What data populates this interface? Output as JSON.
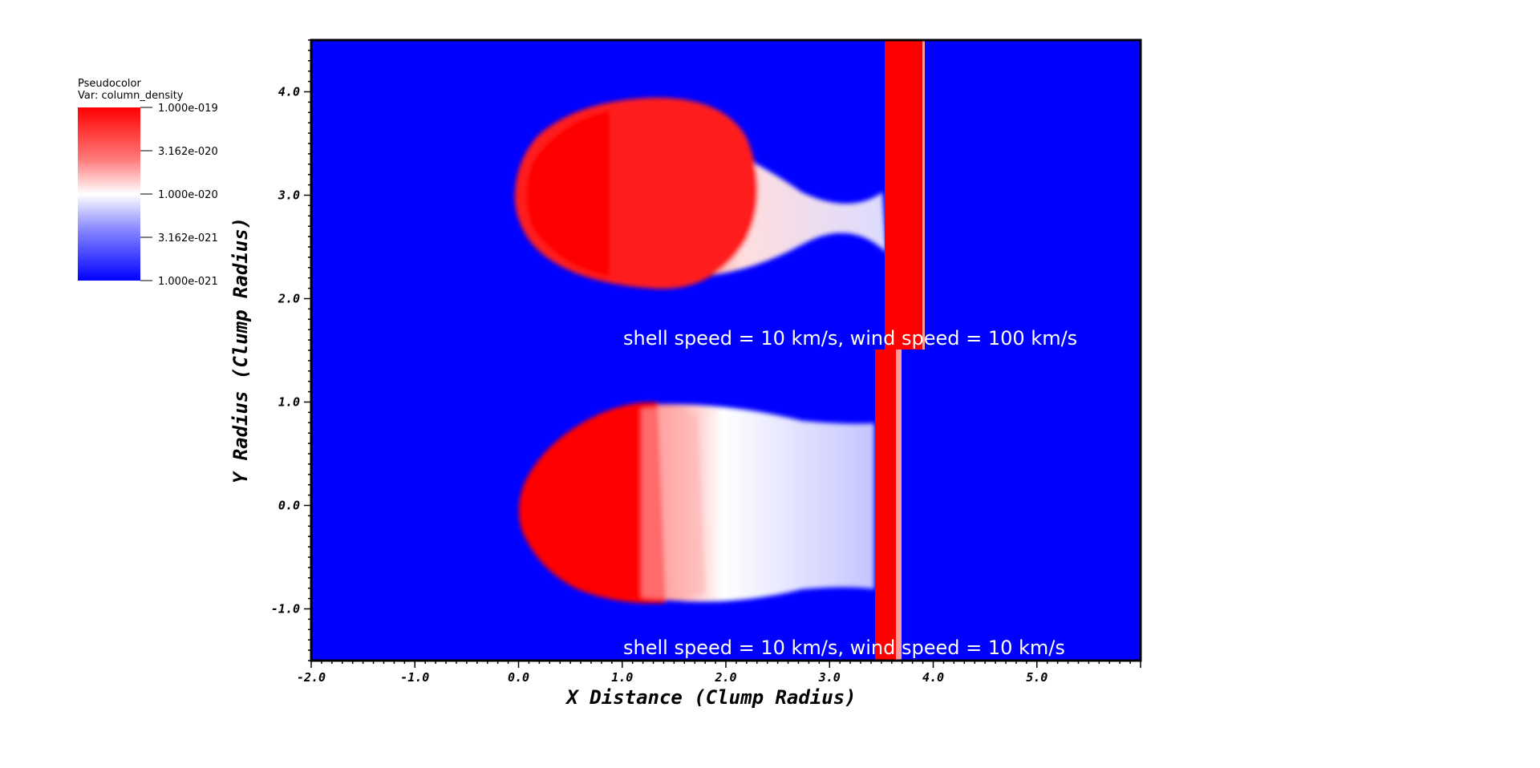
{
  "legend": {
    "title": "Pseudocolor",
    "var_label": "Var: column_density",
    "ticks": [
      "1.000e-019",
      "3.162e-020",
      "1.000e-020",
      "3.162e-021",
      "1.000e-021"
    ],
    "colors": {
      "high": "#ff0000",
      "mid": "#ffffff",
      "low": "#0000ff"
    }
  },
  "chart_data": {
    "type": "heatmap",
    "title": "",
    "xlabel": "X Distance (Clump Radius)",
    "ylabel": "Y Radius (Clump Radius)",
    "xlim": [
      -2.0,
      6.0
    ],
    "ylim": [
      -1.5,
      4.5
    ],
    "x_ticks": [
      "-2.0",
      "-1.0",
      "0.0",
      "1.0",
      "2.0",
      "3.0",
      "4.0",
      "5.0"
    ],
    "y_ticks": [
      "-1.0",
      "0.0",
      "1.0",
      "2.0",
      "3.0",
      "4.0"
    ],
    "colorbar_scale": "log",
    "colorbar_range": [
      1e-21,
      1e-19
    ],
    "background_color": "#0000ff",
    "panels": [
      {
        "annotation": "shell speed = 10 km/s, wind speed = 100 km/s",
        "y_range": [
          1.5,
          4.5
        ],
        "clump_center_y": 3.0,
        "shell_x": [
          3.55,
          3.9
        ]
      },
      {
        "annotation": "shell speed = 10 km/s, wind speed = 10 km/s",
        "y_range": [
          -1.5,
          1.5
        ],
        "clump_center_y": 0.0,
        "shell_x": [
          3.45,
          3.65
        ]
      }
    ]
  }
}
